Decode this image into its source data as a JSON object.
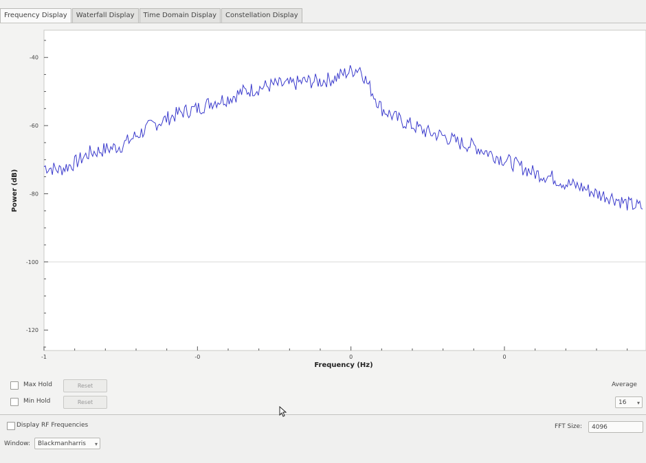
{
  "tabs": [
    {
      "label": "Frequency Display"
    },
    {
      "label": "Waterfall Display"
    },
    {
      "label": "Time Domain Display"
    },
    {
      "label": "Constellation Display"
    }
  ],
  "controls": {
    "max_hold_label": "Max Hold",
    "min_hold_label": "Min Hold",
    "reset_label": "Reset",
    "average_label": "Average",
    "average_value": "16",
    "display_rf_label": "Display RF Frequencies",
    "fft_size_label": "FFT Size:",
    "fft_size_value": "4096",
    "window_label": "Window:",
    "window_value": "Blackmanharris"
  },
  "colors": {
    "trace": "#3a3acc",
    "tab_active": "#fafafa"
  },
  "chart_data": {
    "type": "line",
    "xlabel": "Frequency (Hz)",
    "ylabel": "Power (dB)",
    "ylim": [
      -126,
      -32
    ],
    "y_ticks": [
      {
        "value": -40,
        "label": "-40"
      },
      {
        "value": -60,
        "label": "-60"
      },
      {
        "value": -80,
        "label": "-80"
      },
      {
        "value": -100,
        "label": "-100"
      },
      {
        "value": -120,
        "label": "-120"
      }
    ],
    "xlim": [
      -1,
      0.95
    ],
    "x_ticks": [
      {
        "value": -1,
        "label": "-1"
      },
      {
        "value": -0.5,
        "label": "-0"
      },
      {
        "value": 0,
        "label": "0"
      },
      {
        "value": 0.5,
        "label": "0"
      }
    ],
    "grid": "horizontal line at -100 only",
    "series": [
      {
        "x": [
          -1,
          -0.95,
          -0.9,
          -0.85,
          -0.8,
          -0.75,
          -0.7,
          -0.65,
          -0.6,
          -0.55,
          -0.5,
          -0.45,
          -0.4,
          -0.35,
          -0.3,
          -0.25,
          -0.2,
          -0.15,
          -0.1,
          -0.05,
          -0.03,
          0,
          0.03,
          0.05,
          0.1,
          0.15,
          0.2,
          0.25,
          0.3,
          0.35,
          0.4,
          0.45,
          0.5,
          0.55,
          0.6,
          0.65,
          0.7,
          0.75,
          0.8,
          0.85,
          0.9,
          0.95
        ],
        "y": [
          -72,
          -73,
          -71,
          -68,
          -67,
          -66,
          -63,
          -60,
          -58,
          -56,
          -55,
          -53,
          -52,
          -50,
          -49,
          -48,
          -48,
          -47,
          -47,
          -46,
          -45,
          -44,
          -43,
          -47,
          -55,
          -58,
          -60,
          -62,
          -63,
          -65,
          -66,
          -68,
          -70,
          -72,
          -74,
          -75,
          -77,
          -78,
          -80,
          -81,
          -83,
          -84
        ],
        "noise_amplitude_db": 1.4
      }
    ]
  }
}
